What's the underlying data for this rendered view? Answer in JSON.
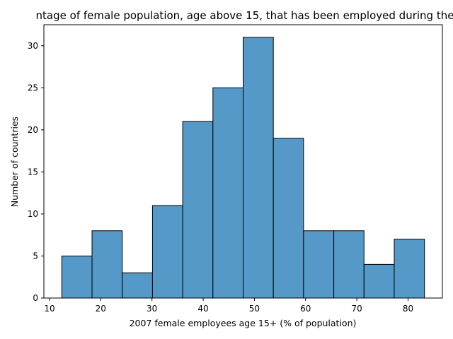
{
  "chart_data": {
    "type": "bar",
    "title": "ntage of female population, age above 15, that has been employed during the",
    "xlabel": "2007 female employees age 15+ (% of population)",
    "ylabel": "Number of countries",
    "bins": [
      {
        "x0": 12.4,
        "x1": 18.3,
        "count": 5
      },
      {
        "x0": 18.3,
        "x1": 24.2,
        "count": 8
      },
      {
        "x0": 24.2,
        "x1": 30.1,
        "count": 3
      },
      {
        "x0": 30.1,
        "x1": 36.0,
        "count": 11
      },
      {
        "x0": 36.0,
        "x1": 41.9,
        "count": 21
      },
      {
        "x0": 41.9,
        "x1": 47.8,
        "count": 25
      },
      {
        "x0": 47.8,
        "x1": 53.7,
        "count": 31
      },
      {
        "x0": 53.7,
        "x1": 59.6,
        "count": 19
      },
      {
        "x0": 59.6,
        "x1": 65.5,
        "count": 8
      },
      {
        "x0": 65.5,
        "x1": 71.4,
        "count": 8
      },
      {
        "x0": 71.4,
        "x1": 77.3,
        "count": 4
      },
      {
        "x0": 77.3,
        "x1": 83.2,
        "count": 7
      }
    ],
    "xlim": [
      8.9,
      86.7
    ],
    "ylim": [
      0,
      32.5
    ],
    "xticks": [
      10,
      20,
      30,
      40,
      50,
      60,
      70,
      80
    ],
    "yticks": [
      0,
      5,
      10,
      15,
      20,
      25,
      30
    ],
    "grid": false,
    "bar_color": "#5499c7",
    "edge_color": "#000000"
  }
}
